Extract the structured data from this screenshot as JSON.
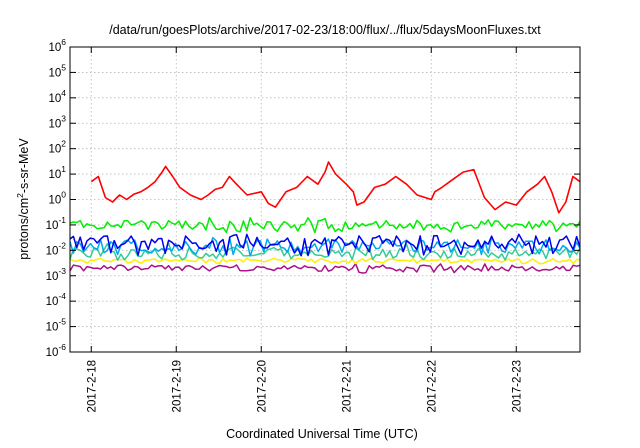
{
  "chart_data": {
    "type": "line",
    "title": "/data/run/goesPlots/archive/2017-02-23/18:00/flux/../flux/5daysMoonFluxes.txt",
    "xlabel": "Coordinated Universal Time (UTC)",
    "ylabel": {
      "pre": "protons/cm",
      "sup": "2",
      "post": "-s-sr-MeV"
    },
    "y_scale": "log",
    "ylim": [
      1e-06,
      1000000.0
    ],
    "y_ticks": [
      {
        "exp": "-6",
        "value": 1e-06
      },
      {
        "exp": "-5",
        "value": 1e-05
      },
      {
        "exp": "-4",
        "value": 0.0001
      },
      {
        "exp": "-3",
        "value": 0.001
      },
      {
        "exp": "-2",
        "value": 0.01
      },
      {
        "exp": "-1",
        "value": 0.1
      },
      {
        "exp": "0",
        "value": 1
      },
      {
        "exp": "1",
        "value": 10
      },
      {
        "exp": "2",
        "value": 100
      },
      {
        "exp": "3",
        "value": 1000
      },
      {
        "exp": "4",
        "value": 10000
      },
      {
        "exp": "5",
        "value": 100000
      },
      {
        "exp": "6",
        "value": 1000000
      }
    ],
    "xlim": [
      "2017-02-17 18:00",
      "2017-02-23 18:00"
    ],
    "x_ticks": [
      {
        "label": "2017-2-18",
        "date": "2017-02-18 00:00"
      },
      {
        "label": "2017-2-19",
        "date": "2017-02-19 00:00"
      },
      {
        "label": "2017-2-20",
        "date": "2017-02-20 00:00"
      },
      {
        "label": "2017-2-21",
        "date": "2017-02-21 00:00"
      },
      {
        "label": "2017-2-22",
        "date": "2017-02-22 00:00"
      },
      {
        "label": "2017-2-23",
        "date": "2017-02-23 00:00"
      }
    ],
    "grid": true,
    "legend": "none",
    "series": [
      {
        "color": "#ff0000",
        "x": [
          "2017-02-18 00:00",
          "2017-02-18 02:00",
          "2017-02-18 04:00",
          "2017-02-18 06:00",
          "2017-02-18 08:00",
          "2017-02-18 10:00",
          "2017-02-18 12:00",
          "2017-02-18 14:00",
          "2017-02-18 16:00",
          "2017-02-18 18:00",
          "2017-02-18 20:00",
          "2017-02-18 21:00",
          "2017-02-18 23:00",
          "2017-02-19 01:00",
          "2017-02-19 04:00",
          "2017-02-19 07:00",
          "2017-02-19 09:00",
          "2017-02-19 11:00",
          "2017-02-19 13:00",
          "2017-02-19 15:00",
          "2017-02-19 17:00",
          "2017-02-19 20:00",
          "2017-02-20 00:00",
          "2017-02-20 02:00",
          "2017-02-20 04:00",
          "2017-02-20 07:00",
          "2017-02-20 10:00",
          "2017-02-20 13:00",
          "2017-02-20 16:00",
          "2017-02-20 18:00",
          "2017-02-20 19:00",
          "2017-02-20 21:00",
          "2017-02-21 00:00",
          "2017-02-21 02:00",
          "2017-02-21 03:00",
          "2017-02-21 05:00",
          "2017-02-21 08:00",
          "2017-02-21 11:00",
          "2017-02-21 14:00",
          "2017-02-21 17:00",
          "2017-02-21 20:00",
          "2017-02-22 00:00",
          "2017-02-22 01:00",
          "2017-02-22 03:00",
          "2017-02-22 06:00",
          "2017-02-22 09:00",
          "2017-02-22 12:00",
          "2017-02-22 15:00",
          "2017-02-22 18:00",
          "2017-02-22 21:00",
          "2017-02-23 00:00",
          "2017-02-23 03:00",
          "2017-02-23 06:00",
          "2017-02-23 08:00",
          "2017-02-23 10:00",
          "2017-02-23 12:00",
          "2017-02-23 14:00",
          "2017-02-23 16:00",
          "2017-02-23 18:00"
        ],
        "y": [
          5,
          8,
          1.2,
          0.8,
          1.5,
          1,
          1.6,
          2,
          3,
          5,
          12,
          20,
          8,
          3,
          1.5,
          1,
          1.5,
          2.5,
          3,
          8,
          4,
          1.5,
          2,
          0.7,
          0.5,
          2,
          3,
          8,
          4,
          12,
          30,
          10,
          4,
          2,
          0.6,
          0.8,
          3,
          4,
          8,
          4,
          1.5,
          1,
          2,
          3,
          6,
          12,
          15,
          1.2,
          0.4,
          0.8,
          0.6,
          2,
          4,
          8,
          2,
          0.3,
          0.8,
          8,
          5
        ]
      },
      {
        "color": "#00ee00",
        "approx": 0.1,
        "range": [
          0.05,
          0.2
        ]
      },
      {
        "color": "#0000ee",
        "approx": 0.02,
        "range": [
          0.006,
          0.05
        ]
      },
      {
        "color": "#00a8f0",
        "approx": 0.015,
        "range": [
          0.006,
          0.04
        ]
      },
      {
        "color": "#33cc99",
        "approx": 0.008,
        "range": [
          0.004,
          0.02
        ]
      },
      {
        "color": "#ffee00",
        "approx": 0.004,
        "range": [
          0.003,
          0.005
        ]
      },
      {
        "color": "#aa1188",
        "approx": 0.002,
        "range": [
          0.0012,
          0.003
        ]
      }
    ]
  }
}
